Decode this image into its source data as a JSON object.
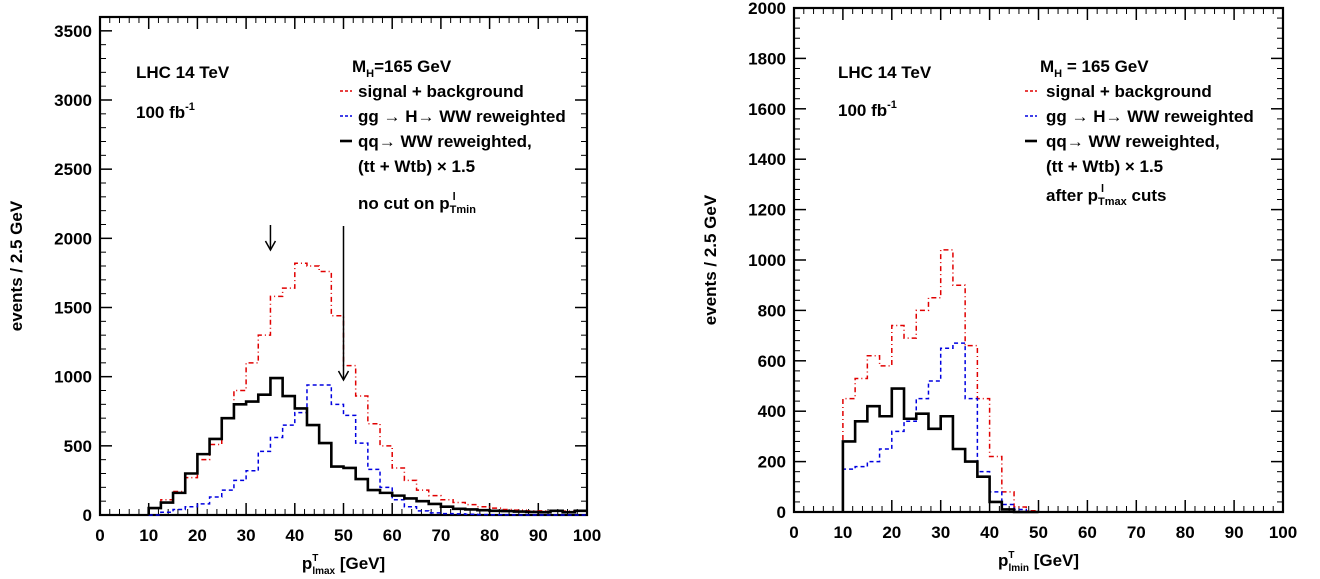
{
  "chart_data": [
    {
      "type": "line",
      "step": true,
      "xlim": [
        0,
        100
      ],
      "ylim": [
        0,
        3600
      ],
      "xticks": [
        0,
        10,
        20,
        30,
        40,
        50,
        60,
        70,
        80,
        90,
        100
      ],
      "yticks": [
        0,
        500,
        1000,
        1500,
        2000,
        2500,
        3000,
        3500
      ],
      "xlabel": {
        "main": "p",
        "sup": "T",
        "sub": "lmax",
        "unit": " [GeV]"
      },
      "ylabel": "events  / 2.5 GeV",
      "bin_width": 2.5,
      "bin_start": 10,
      "annotations": {
        "experiment": "LHC 14 TeV",
        "lumi": "100 fb",
        "lumi_sup": "-1",
        "mass": {
          "main": "M",
          "sub": "H",
          "rest": "=165 GeV"
        },
        "cut_main": "no cut on p",
        "cut_sup": "l",
        "cut_sub": "Tmin",
        "arrows_x": [
          35,
          50
        ]
      },
      "legend": [
        {
          "text": "signal + background",
          "series": 0
        },
        {
          "text": "gg → H→ WW reweighted",
          "series": 1
        },
        {
          "text": "qq→ WW reweighted,",
          "series": 2
        },
        {
          "text": "(tt + Wtb) × 1.5",
          "series": -1
        }
      ],
      "series": [
        {
          "color": "#e00000",
          "dash": "5,3,1,3",
          "width": 1.5,
          "values": [
            50,
            110,
            170,
            270,
            400,
            510,
            700,
            900,
            1100,
            1300,
            1580,
            1640,
            1820,
            1800,
            1760,
            1440,
            1080,
            860,
            660,
            500,
            340,
            250,
            180,
            140,
            110,
            90,
            75,
            60,
            50,
            40,
            35,
            30,
            30,
            28,
            28,
            28
          ]
        },
        {
          "color": "#0000e0",
          "dash": "4,3",
          "width": 1.5,
          "values": [
            0,
            20,
            40,
            60,
            80,
            130,
            180,
            250,
            320,
            460,
            560,
            650,
            740,
            940,
            940,
            800,
            720,
            520,
            330,
            200,
            110,
            60,
            30,
            15,
            10,
            8,
            5,
            3,
            2,
            1,
            0,
            0,
            0,
            0,
            0,
            0
          ]
        },
        {
          "color": "#000000",
          "dash": "",
          "width": 2.6,
          "values": [
            50,
            90,
            160,
            300,
            440,
            550,
            700,
            800,
            820,
            870,
            990,
            860,
            770,
            650,
            520,
            350,
            340,
            260,
            180,
            160,
            140,
            120,
            100,
            80,
            60,
            45,
            40,
            35,
            30,
            28,
            25,
            22,
            20,
            30,
            20,
            30
          ]
        }
      ]
    },
    {
      "type": "line",
      "step": true,
      "xlim": [
        0,
        100
      ],
      "ylim": [
        0,
        2000
      ],
      "xticks": [
        0,
        10,
        20,
        30,
        40,
        50,
        60,
        70,
        80,
        90,
        100
      ],
      "yticks": [
        0,
        200,
        400,
        600,
        800,
        1000,
        1200,
        1400,
        1600,
        1800,
        2000
      ],
      "xlabel": {
        "main": "p",
        "sup": "T",
        "sub": "lmin",
        "unit": " [GeV]"
      },
      "ylabel": "events  / 2.5 GeV",
      "bin_width": 2.5,
      "bin_start": 10,
      "annotations": {
        "experiment": "LHC 14 TeV",
        "lumi": "100 fb",
        "lumi_sup": "-1",
        "mass": {
          "main": "M",
          "sub": "H",
          "rest": " = 165 GeV"
        },
        "cut_main": "after p",
        "cut_sup": "l",
        "cut_sub": "Tmax",
        "cut_rest": " cuts"
      },
      "legend": [
        {
          "text": "signal + background",
          "series": 0
        },
        {
          "text": "gg → H→ WW reweighted",
          "series": 1
        },
        {
          "text": "qq→ WW reweighted,",
          "series": 2
        },
        {
          "text": "(tt + Wtb) × 1.5",
          "series": -1
        }
      ],
      "series": [
        {
          "color": "#e00000",
          "dash": "5,3,1,3",
          "width": 1.5,
          "values": [
            450,
            530,
            620,
            580,
            740,
            690,
            800,
            850,
            1040,
            900,
            660,
            450,
            220,
            80,
            20,
            5
          ]
        },
        {
          "color": "#0000e0",
          "dash": "4,3",
          "width": 1.5,
          "values": [
            170,
            180,
            200,
            250,
            320,
            360,
            450,
            520,
            650,
            670,
            450,
            160,
            80,
            30,
            10,
            0
          ]
        },
        {
          "color": "#000000",
          "dash": "",
          "width": 2.6,
          "values": [
            280,
            360,
            420,
            380,
            490,
            370,
            390,
            330,
            380,
            250,
            200,
            140,
            40,
            10,
            0,
            0
          ]
        }
      ]
    }
  ]
}
